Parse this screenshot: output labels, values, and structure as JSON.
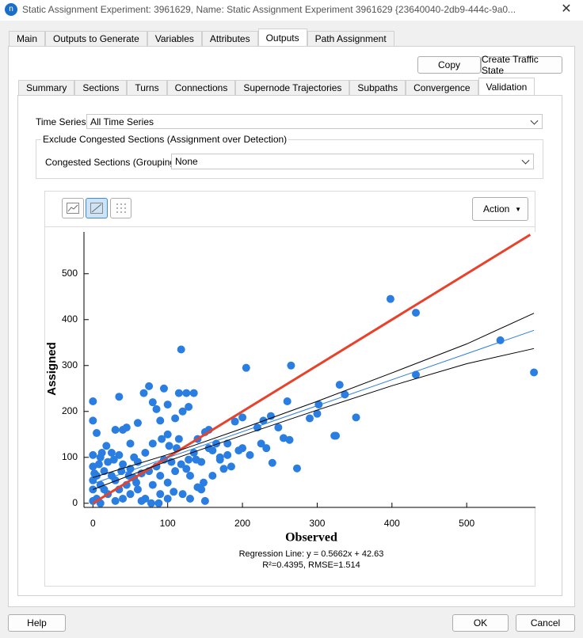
{
  "window": {
    "title": "Static Assignment Experiment: 3961629, Name: Static Assignment Experiment 3961629  {23640040-2db9-444c-9a0..."
  },
  "tabs": {
    "items": [
      "Main",
      "Outputs to Generate",
      "Variables",
      "Attributes",
      "Outputs",
      "Path Assignment"
    ],
    "active": 4
  },
  "buttons": {
    "copy": "Copy",
    "create": "Create Traffic State",
    "action": "Action",
    "help": "Help",
    "ok": "OK",
    "cancel": "Cancel"
  },
  "subtabs": {
    "items": [
      "Summary",
      "Sections",
      "Turns",
      "Connections",
      "Supernode Trajectories",
      "Subpaths",
      "Convergence",
      "Validation"
    ],
    "active": 7
  },
  "time_series": {
    "label": "Time Series:",
    "value": "All Time Series"
  },
  "group": {
    "title": "Exclude Congested Sections (Assignment over Detection)",
    "label": "Congested Sections (Grouping):",
    "value": "None"
  },
  "chart_data": {
    "type": "scatter",
    "xlabel": "Observed",
    "ylabel": "Assigned",
    "annotations": [
      "Regression Line: y = 0.5662x + 42.63",
      "R²=0.4395, RMSE=1.514"
    ],
    "xlim": [
      -12,
      592
    ],
    "ylim": [
      -9,
      591
    ],
    "xticks": [
      0,
      100,
      200,
      300,
      400,
      500
    ],
    "yticks": [
      0,
      100,
      200,
      300,
      400,
      500
    ],
    "series": [
      {
        "color": "#2a7de1",
        "x": [
          398,
          432,
          545,
          590,
          432,
          330,
          337,
          265,
          205,
          118,
          352,
          300,
          302,
          290,
          323,
          325,
          273,
          240,
          255,
          263,
          260,
          248,
          238,
          228,
          232,
          225,
          220,
          200,
          190,
          185,
          170,
          165,
          150,
          155,
          135,
          125,
          115,
          95,
          75,
          68,
          35,
          0,
          0,
          5,
          80,
          100,
          110,
          120,
          128,
          115,
          100,
          90,
          85,
          60,
          45,
          40,
          30,
          50,
          25,
          35,
          10,
          0,
          0,
          5,
          10,
          15,
          20,
          5,
          0,
          10,
          30,
          40,
          50,
          60,
          70,
          80,
          90,
          100,
          110,
          120,
          130,
          140,
          150,
          145,
          160,
          170,
          180,
          130,
          125,
          105,
          95,
          85,
          75,
          65,
          55,
          45,
          35,
          25,
          15,
          60,
          70,
          80,
          55,
          40,
          20,
          30,
          50,
          90,
          100,
          65,
          200,
          180,
          210,
          160,
          175,
          195,
          140,
          135,
          145,
          155,
          0,
          0,
          2,
          8,
          12,
          18,
          28,
          38,
          48,
          58,
          78,
          88,
          108,
          118,
          128,
          148,
          138,
          112,
          102,
          92
        ],
        "values": [
          445,
          415,
          355,
          285,
          280,
          258,
          237,
          300,
          295,
          335,
          187,
          195,
          215,
          185,
          147,
          147,
          76,
          88,
          142,
          138,
          222,
          165,
          190,
          180,
          120,
          130,
          165,
          187,
          178,
          80,
          95,
          130,
          155,
          160,
          240,
          240,
          240,
          250,
          255,
          240,
          232,
          222,
          180,
          153,
          220,
          215,
          185,
          200,
          210,
          140,
          150,
          180,
          205,
          175,
          165,
          160,
          160,
          130,
          110,
          105,
          100,
          105,
          80,
          60,
          40,
          30,
          20,
          10,
          5,
          0,
          5,
          10,
          20,
          30,
          10,
          40,
          60,
          45,
          70,
          20,
          10,
          35,
          5,
          30,
          60,
          100,
          105,
          60,
          75,
          90,
          95,
          80,
          70,
          65,
          55,
          40,
          30,
          60,
          70,
          90,
          110,
          130,
          100,
          85,
          90,
          50,
          75,
          20,
          10,
          5,
          120,
          130,
          105,
          115,
          75,
          115,
          140,
          110,
          90,
          120,
          30,
          50,
          65,
          85,
          110,
          125,
          95,
          70,
          60,
          45,
          0,
          0,
          25,
          85,
          95,
          45,
          95,
          120,
          125,
          140
        ]
      }
    ],
    "lines": [
      {
        "color": "#e8412c",
        "width": 3,
        "x": [
          0,
          585
        ],
        "y": [
          0,
          585
        ]
      },
      {
        "color": "#2a7de1",
        "width": 1,
        "x": [
          0,
          590
        ],
        "y": [
          42.63,
          376.7
        ]
      },
      {
        "color": "#000000",
        "width": 1,
        "x": [
          0,
          100,
          200,
          300,
          400,
          500,
          590
        ],
        "y": [
          56,
          106,
          163,
          222,
          284,
          347,
          414
        ]
      },
      {
        "color": "#000000",
        "width": 1,
        "x": [
          0,
          100,
          200,
          300,
          400,
          500,
          590
        ],
        "y": [
          30,
          92,
          148,
          203,
          256,
          304,
          337
        ]
      }
    ]
  }
}
